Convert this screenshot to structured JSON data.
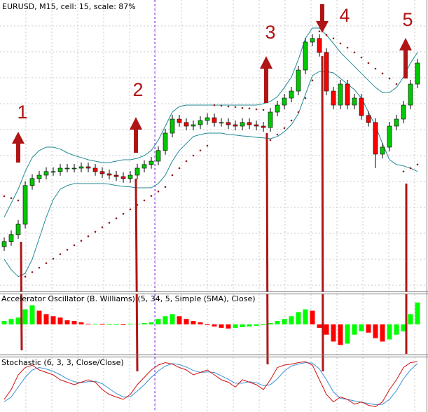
{
  "chart_data": [
    {
      "type": "candlestick",
      "title": "EURUSD, M15, cell: 15, scale: 87%",
      "ylim": [
        0,
        104
      ],
      "grid": true,
      "up_color": "#00c800",
      "down_color": "#ff0000",
      "open": [
        16,
        17.8,
        20.3,
        24,
        37.8,
        40.3,
        41.5,
        42.8,
        42.8,
        44,
        44,
        44,
        44.5,
        44,
        42.8,
        42,
        41.5,
        41,
        40.3,
        41.5,
        44,
        45.3,
        46.5,
        50.3,
        56.5,
        61.5,
        60.3,
        59,
        59.5,
        61,
        62,
        60.3,
        60.3,
        59.5,
        59,
        60.3,
        59.5,
        59,
        58.5,
        64,
        66.5,
        69,
        71.5,
        79,
        89,
        90.3,
        85.3,
        71.5,
        66.5,
        74,
        66.5,
        69,
        62.8,
        60.3,
        49,
        51.5,
        59,
        61.5,
        66.5,
        74
      ],
      "high": [
        19.3,
        21.8,
        25.5,
        39.3,
        41.8,
        43,
        44.3,
        44.3,
        45.5,
        45.5,
        45.5,
        46,
        46,
        45.5,
        44.3,
        43.5,
        43,
        42.5,
        43,
        45.5,
        46.8,
        48,
        51.8,
        58,
        63,
        63,
        61.8,
        61,
        62.5,
        63.5,
        63.5,
        61.8,
        61.8,
        61,
        61.8,
        61.8,
        61,
        60.5,
        65.5,
        68,
        70.5,
        73,
        80.5,
        90.5,
        91.8,
        91.8,
        86.8,
        73,
        75.5,
        75.5,
        70.5,
        70.5,
        64.3,
        61.8,
        53,
        60.5,
        63,
        68,
        75.5,
        83
      ],
      "low": [
        14.5,
        16.3,
        18.8,
        22.5,
        36.3,
        38.8,
        40,
        41.3,
        41.3,
        42.5,
        42.5,
        42.5,
        42.5,
        41.3,
        40.5,
        40,
        39.5,
        38.8,
        38.8,
        40,
        42.5,
        43.8,
        45,
        48.8,
        55,
        58.8,
        57.5,
        57.5,
        58,
        59.5,
        58.8,
        58.8,
        58,
        57.5,
        57.5,
        58,
        57.5,
        57,
        57,
        62.5,
        65,
        67.5,
        70,
        77.5,
        87.5,
        83.8,
        70,
        65,
        65,
        65,
        65,
        61.3,
        58.8,
        44,
        47.5,
        50,
        57.5,
        60,
        65,
        72.5
      ],
      "close": [
        17.8,
        20.3,
        24,
        37.8,
        40.3,
        41.5,
        42.8,
        42.8,
        44,
        44,
        44,
        44.5,
        44,
        42.8,
        42,
        41.5,
        41,
        40.3,
        41.5,
        44,
        45.3,
        46.5,
        50.3,
        56.5,
        61.5,
        60.3,
        59,
        59.5,
        61,
        62,
        60.3,
        60.3,
        59.5,
        59,
        60.3,
        59.5,
        59,
        58.5,
        64,
        66.5,
        69,
        71.5,
        79,
        89,
        90.3,
        85.3,
        71.5,
        66.5,
        74,
        66.5,
        69,
        62.8,
        60.3,
        49,
        51.5,
        59,
        61.5,
        66.5,
        74,
        81.5
      ],
      "series": [
        {
          "color": "#1f8a96",
          "values": [
            26.5,
            31.5,
            36.5,
            42.8,
            47.8,
            50.3,
            51.5,
            51.5,
            50.8,
            49.5,
            48.5,
            47.8,
            47,
            46.5,
            46,
            46,
            46.5,
            47,
            47,
            47.5,
            48.5,
            50.3,
            54,
            59,
            64,
            66,
            66.5,
            66.5,
            66.5,
            66.5,
            66.5,
            66.5,
            66.5,
            66.5,
            66.5,
            66.5,
            66.5,
            67,
            67.8,
            69.5,
            72.8,
            76.5,
            82.8,
            90.3,
            94,
            94,
            91.5,
            88.5,
            85.3,
            82.8,
            80.3,
            77.8,
            75.3,
            72.8,
            71,
            71,
            72.8,
            76.5,
            81.5,
            85.3
          ]
        },
        {
          "color": "#1f8a96",
          "values": [
            11.5,
            7.8,
            5.3,
            6.5,
            11.5,
            19,
            26.5,
            32.8,
            36.5,
            37.8,
            38.5,
            38.5,
            38.5,
            38.5,
            38.5,
            38.3,
            37.8,
            37.5,
            37.3,
            37,
            37,
            37,
            38.5,
            41.5,
            46.5,
            50.3,
            52.8,
            55.3,
            56,
            56.5,
            56.5,
            56.5,
            56,
            55.8,
            55.5,
            55.3,
            55,
            54.8,
            54.5,
            55.3,
            57,
            59.5,
            63.5,
            70.3,
            77,
            78.5,
            78.5,
            78,
            76,
            74,
            72,
            69,
            64,
            59,
            52.8,
            47,
            45.3,
            44.8,
            44,
            42.8
          ]
        }
      ],
      "sar": {
        "color": "#8b1a1a",
        "values": [
          34,
          33.3,
          32.5,
          5.3,
          6.9,
          8.5,
          10.1,
          11.7,
          13.3,
          14.9,
          16.5,
          18.1,
          19.7,
          21.3,
          22.9,
          24.5,
          26.1,
          27.7,
          29.3,
          30.9,
          32.5,
          34.1,
          35.7,
          37.3,
          41.5,
          44,
          46.5,
          48.5,
          50.3,
          52,
          66.5,
          66.3,
          66,
          65.8,
          65.5,
          65.3,
          65,
          64.8,
          54,
          56,
          58.3,
          61,
          64,
          69,
          75.3,
          92.8,
          91.5,
          90.3,
          88.5,
          87,
          85.3,
          83.5,
          81.5,
          79.5,
          77.8,
          76,
          74,
          42.8,
          44,
          45.3
        ]
      },
      "annotations": [
        "1",
        "2",
        "3",
        "4",
        "5"
      ]
    },
    {
      "type": "bar",
      "title": "Accelerator Oscillator (B. Williams) (5, 34, 5, Simple (SMA), Close)",
      "ylim": [
        -44,
        44
      ],
      "up_color": "#00ff00",
      "down_color": "#ff0000",
      "values": [
        5,
        8,
        10,
        22,
        28,
        20,
        15,
        12,
        10,
        6,
        5,
        3,
        1,
        1,
        0.5,
        0.5,
        0.5,
        -1,
        1,
        1,
        2,
        3,
        8,
        12,
        15,
        12,
        8,
        5,
        3,
        0,
        -3,
        -5,
        -6,
        -5,
        -4,
        -3,
        -2,
        -1,
        2,
        5,
        8,
        12,
        18,
        22,
        20,
        -5,
        -15,
        -25,
        -30,
        -28,
        -15,
        -10,
        -12,
        -20,
        -25,
        -22,
        -15,
        -10,
        15,
        32
      ]
    },
    {
      "type": "line",
      "title": "Stochastic (6, 3, 3, Close/Close)",
      "ylim": [
        0,
        100
      ],
      "series": [
        {
          "color": "#d01010",
          "values": [
            20,
            40,
            70,
            85,
            90,
            80,
            75,
            70,
            60,
            55,
            50,
            55,
            60,
            55,
            40,
            30,
            25,
            20,
            30,
            50,
            65,
            80,
            90,
            95,
            92,
            85,
            80,
            70,
            75,
            80,
            70,
            60,
            55,
            45,
            60,
            55,
            50,
            40,
            60,
            85,
            90,
            92,
            95,
            97,
            90,
            60,
            30,
            15,
            25,
            20,
            10,
            15,
            8,
            5,
            15,
            40,
            60,
            85,
            95,
            97
          ]
        },
        {
          "color": "#3a8fd6",
          "values": [
            15,
            25,
            45,
            65,
            80,
            85,
            82,
            77,
            70,
            62,
            56,
            54,
            56,
            57,
            52,
            42,
            32,
            25,
            25,
            37,
            50,
            65,
            78,
            88,
            93,
            91,
            86,
            79,
            75,
            76,
            75,
            68,
            61,
            53,
            53,
            56,
            54,
            48,
            50,
            62,
            78,
            88,
            92,
            95,
            94,
            82,
            60,
            35,
            22,
            20,
            17,
            14,
            12,
            9,
            10,
            20,
            38,
            62,
            80,
            93
          ]
        }
      ]
    }
  ]
}
